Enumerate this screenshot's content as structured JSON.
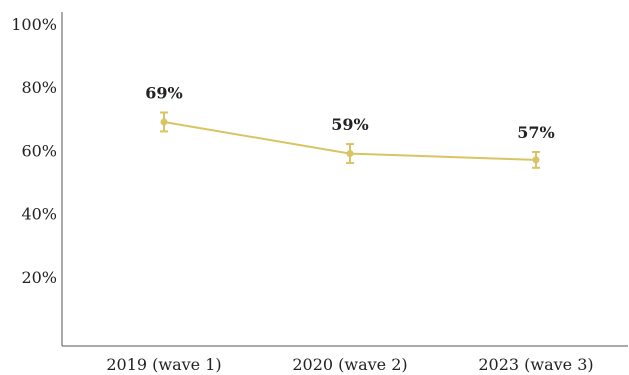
{
  "chart_data": {
    "type": "line",
    "categories": [
      "2019 (wave 1)",
      "2020 (wave 2)",
      "2023 (wave 3)"
    ],
    "series": [
      {
        "values": [
          69,
          59,
          57
        ],
        "error_low": [
          66,
          56,
          54.5
        ],
        "error_high": [
          72,
          62,
          59.5
        ],
        "color": "#d8c462"
      }
    ],
    "data_labels": [
      "69%",
      "59%",
      "57%"
    ],
    "y_ticks": [
      20,
      40,
      60,
      80,
      100
    ],
    "y_tick_labels": [
      "20%",
      "40%",
      "60%",
      "80%",
      "100%"
    ],
    "ylim": [
      0,
      100
    ],
    "grid": false,
    "title": "",
    "xlabel": "",
    "ylabel": ""
  }
}
